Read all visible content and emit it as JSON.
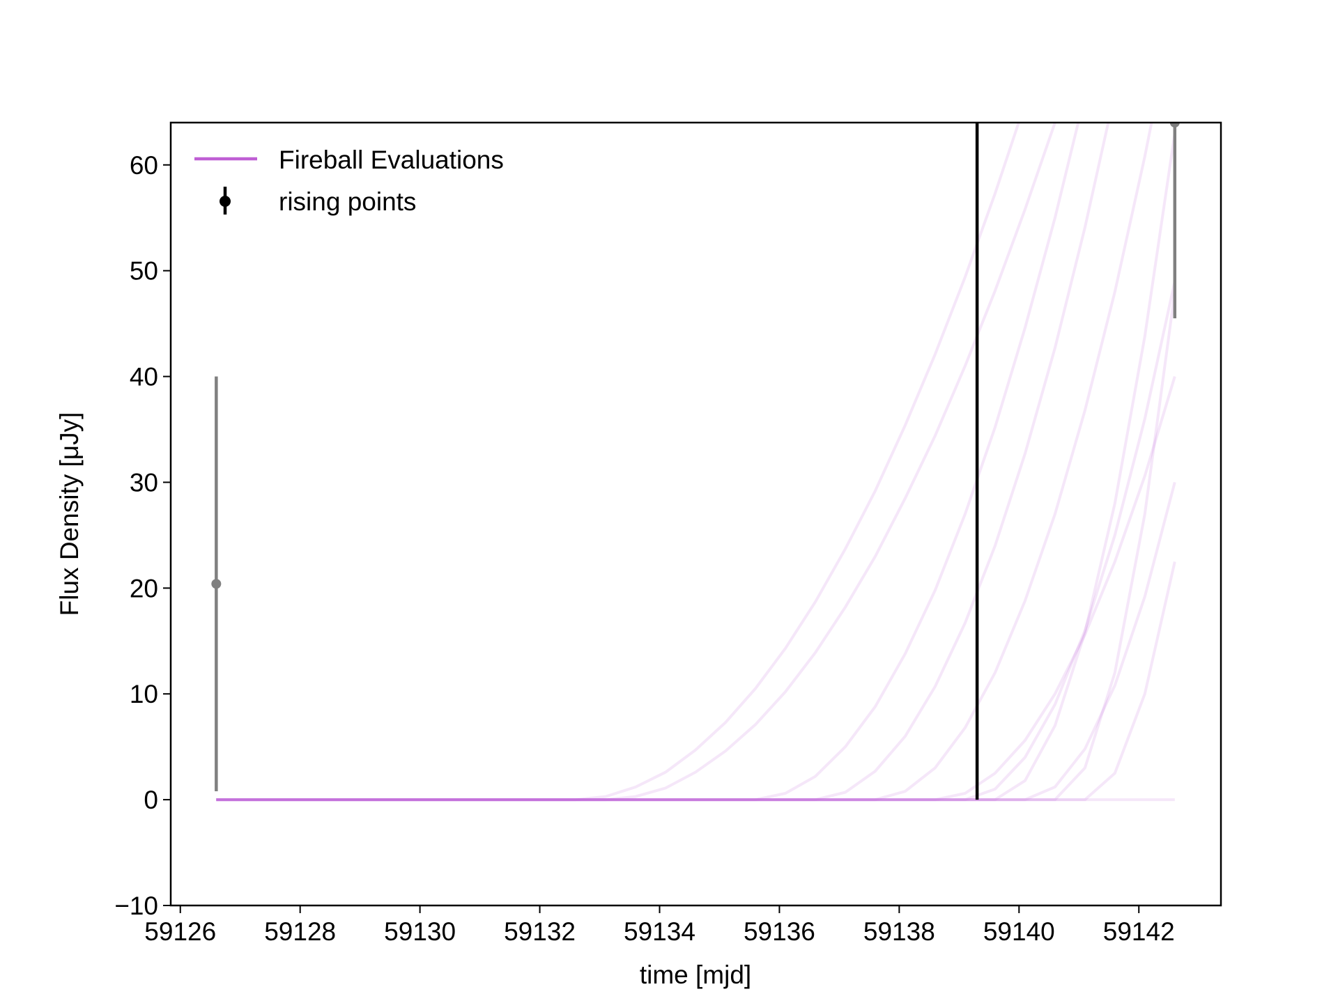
{
  "chart_data": {
    "type": "line",
    "xlabel": "time [mjd]",
    "ylabel": "Flux Density [μJy]",
    "xlim": [
      59125.84,
      59143.37
    ],
    "ylim": [
      -10,
      64
    ],
    "xticks": [
      59126,
      59128,
      59130,
      59132,
      59134,
      59136,
      59138,
      59140,
      59142
    ],
    "yticks": [
      {
        "value": -10,
        "label": "−10"
      },
      0,
      10,
      20,
      30,
      40,
      50,
      60
    ],
    "x": [
      59126.6,
      59127.1,
      59127.6,
      59128.1,
      59128.6,
      59129.1,
      59129.6,
      59130.1,
      59130.6,
      59131.1,
      59131.6,
      59132.1,
      59132.6,
      59133.1,
      59133.6,
      59134.1,
      59134.6,
      59135.1,
      59135.6,
      59136.1,
      59136.6,
      59137.1,
      59137.6,
      59138.1,
      59138.6,
      59139.1,
      59139.6,
      59140.1,
      59140.6,
      59141.1,
      59141.6,
      59142.1,
      59142.6
    ],
    "series": [
      {
        "name": "Fireball Evaluations",
        "color": "#bf5fd4",
        "opacity": 0.15,
        "curves": [
          [
            0,
            0,
            0,
            0,
            0,
            0,
            0,
            0,
            0,
            0,
            0,
            0,
            0,
            0.3,
            1.2,
            2.6,
            4.7,
            7.3,
            10.5,
            14.3,
            18.7,
            23.7,
            29.2,
            35.4,
            42.1,
            49.4,
            57.3,
            65.8,
            null,
            null,
            null,
            null,
            null
          ],
          [
            0,
            0,
            0,
            0,
            0,
            0,
            0,
            0,
            0,
            0,
            0,
            0,
            0,
            0,
            0.3,
            1.1,
            2.6,
            4.6,
            7.1,
            10.2,
            13.9,
            18.2,
            23.0,
            28.5,
            34.4,
            41.0,
            48.1,
            55.8,
            64.0,
            72.8,
            null,
            null,
            null
          ],
          [
            0,
            0,
            0,
            0,
            0,
            0,
            0,
            0,
            0,
            0,
            0,
            0,
            0,
            0,
            0,
            0,
            0,
            0,
            0,
            0.6,
            2.2,
            5.0,
            8.8,
            13.8,
            19.8,
            27.0,
            35.2,
            44.6,
            55.0,
            66.6,
            null,
            null,
            null
          ],
          [
            0,
            0,
            0,
            0,
            0,
            0,
            0,
            0,
            0,
            0,
            0,
            0,
            0,
            0,
            0,
            0,
            0,
            0,
            0,
            0,
            0,
            0.7,
            2.7,
            6.0,
            10.7,
            16.7,
            24.0,
            32.7,
            42.7,
            54.1,
            66.8,
            null,
            null
          ],
          [
            0,
            0,
            0,
            0,
            0,
            0,
            0,
            0,
            0,
            0,
            0,
            0,
            0,
            0,
            0,
            0,
            0,
            0,
            0,
            0,
            0,
            0,
            0,
            0.8,
            3.0,
            6.8,
            12.0,
            18.8,
            27.0,
            36.8,
            48.0,
            60.8,
            75.0
          ],
          [
            0,
            0,
            0,
            0,
            0,
            0,
            0,
            0,
            0,
            0,
            0,
            0,
            0,
            0,
            0,
            0,
            0,
            0,
            0,
            0,
            0,
            0,
            0,
            0,
            0,
            0.6,
            2.5,
            5.6,
            10.0,
            15.6,
            22.5,
            30.6,
            40.0
          ],
          [
            0,
            0,
            0,
            0,
            0,
            0,
            0,
            0,
            0,
            0,
            0,
            0,
            0,
            0,
            0,
            0,
            0,
            0,
            0,
            0,
            0,
            0,
            0,
            0,
            0,
            0,
            1.0,
            4.0,
            9.0,
            16.0,
            25.0,
            36.0,
            49.0
          ],
          [
            0,
            0,
            0,
            0,
            0,
            0,
            0,
            0,
            0,
            0,
            0,
            0,
            0,
            0,
            0,
            0,
            0,
            0,
            0,
            0,
            0,
            0,
            0,
            0,
            0,
            0,
            0,
            1.8,
            7.0,
            15.8,
            28.0,
            43.8,
            63.0
          ],
          [
            0,
            0,
            0,
            0,
            0,
            0,
            0,
            0,
            0,
            0,
            0,
            0,
            0,
            0,
            0,
            0,
            0,
            0,
            0,
            0,
            0,
            0,
            0,
            0,
            0,
            0,
            0,
            0,
            1.2,
            4.8,
            10.8,
            19.2,
            30.0
          ],
          [
            0,
            0,
            0,
            0,
            0,
            0,
            0,
            0,
            0,
            0,
            0,
            0,
            0,
            0,
            0,
            0,
            0,
            0,
            0,
            0,
            0,
            0,
            0,
            0,
            0,
            0,
            0,
            0,
            0,
            3.0,
            12.0,
            27.0,
            48.0
          ],
          [
            0,
            0,
            0,
            0,
            0,
            0,
            0,
            0,
            0,
            0,
            0,
            0,
            0,
            0,
            0,
            0,
            0,
            0,
            0,
            0,
            0,
            0,
            0,
            0,
            0,
            0,
            0,
            0,
            0,
            0,
            2.5,
            10.0,
            22.5
          ],
          [
            0,
            0,
            0,
            0,
            0,
            0,
            0,
            0,
            0,
            0,
            0,
            0,
            0,
            0,
            0,
            0,
            0,
            0,
            0,
            0,
            0,
            0,
            0,
            0,
            0,
            0,
            0,
            0,
            0,
            0,
            0,
            0,
            0
          ]
        ]
      },
      {
        "name": "rising points",
        "type": "errorbar",
        "color": "#808080",
        "x": [
          59126.6,
          59142.6
        ],
        "values": [
          20.4,
          64
        ],
        "errors": [
          19.6,
          18.5
        ]
      }
    ],
    "vline": {
      "x": 59139.3,
      "ymin": 0,
      "color": "#000000"
    }
  }
}
